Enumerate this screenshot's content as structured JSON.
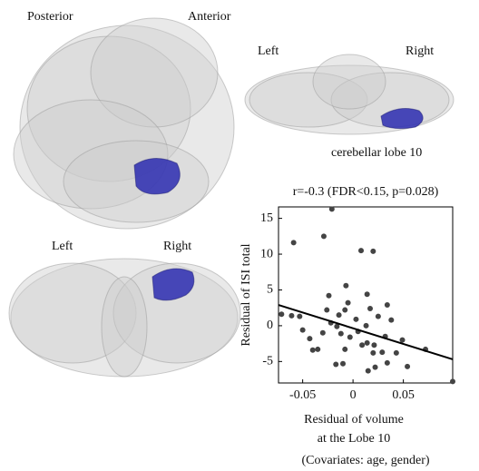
{
  "brain_views": [
    {
      "labels": [
        "Posterior",
        "Anterior"
      ]
    },
    {
      "labels": [
        "Left",
        "Right"
      ],
      "caption": "cerebellar lobe 10"
    },
    {
      "labels": [
        "Left",
        "Right"
      ]
    }
  ],
  "chart_data": {
    "type": "scatter",
    "title": "r=-0.3 (FDR<0.15, p=0.028)",
    "xlabel": [
      "Residual of volume",
      "at the Lobe 10"
    ],
    "ylabel": "Residual of ISI total",
    "note": "(Covariates: age, gender)",
    "x": [
      -0.021,
      -0.059,
      -0.029,
      0.008,
      0.02,
      -0.071,
      -0.061,
      -0.053,
      -0.05,
      -0.043,
      -0.04,
      -0.035,
      -0.03,
      -0.026,
      -0.024,
      -0.022,
      -0.016,
      -0.014,
      -0.012,
      -0.008,
      -0.005,
      -0.007,
      -0.003,
      -0.008,
      -0.017,
      -0.01,
      0.003,
      0.005,
      0.009,
      0.013,
      0.014,
      0.017,
      0.014,
      0.021,
      0.02,
      0.015,
      0.022,
      0.025,
      0.029,
      0.032,
      0.034,
      0.038,
      0.043,
      0.049,
      0.072,
      0.054,
      0.034,
      0.099
    ],
    "y": [
      16.3,
      11.6,
      12.5,
      10.5,
      10.4,
      1.6,
      1.4,
      1.3,
      -0.6,
      -1.8,
      -3.4,
      -3.3,
      -1.0,
      2.2,
      4.2,
      0.4,
      -0.1,
      1.5,
      -1.1,
      2.2,
      3.2,
      5.6,
      -1.6,
      -3.3,
      -5.4,
      -5.3,
      0.9,
      -0.8,
      -2.7,
      0,
      -2.4,
      2.4,
      4.4,
      -2.7,
      -3.8,
      -6.3,
      -5.8,
      1.3,
      -3.7,
      -1.5,
      2.9,
      0.8,
      -3.8,
      -2.0,
      -3.3,
      -5.7,
      -5.2,
      -7.8
    ],
    "color": "#444444",
    "fit_line": {
      "x": [
        -0.074,
        0.099
      ],
      "y": [
        2.9,
        -4.7
      ],
      "color": "#000000"
    },
    "xlim": [
      -0.074,
      0.099
    ],
    "ylim": [
      -8,
      16.6
    ],
    "xticks": [
      -0.05,
      0,
      0.05
    ],
    "yticks": [
      -5,
      0,
      5,
      10,
      15
    ]
  }
}
